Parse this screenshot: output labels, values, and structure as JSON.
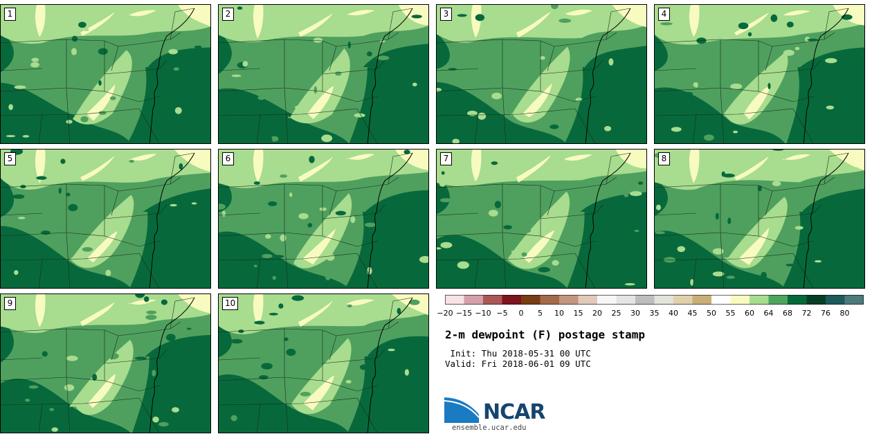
{
  "panels": [
    {
      "label": "1"
    },
    {
      "label": "2"
    },
    {
      "label": "3"
    },
    {
      "label": "4"
    },
    {
      "label": "5"
    },
    {
      "label": "6"
    },
    {
      "label": "7"
    },
    {
      "label": "8"
    },
    {
      "label": "9"
    },
    {
      "label": "10"
    }
  ],
  "colorbar": {
    "tick_labels": [
      "−20",
      "−15",
      "−10",
      "−5",
      "0",
      "5",
      "10",
      "15",
      "20",
      "25",
      "30",
      "35",
      "40",
      "45",
      "50",
      "55",
      "60",
      "64",
      "68",
      "72",
      "76",
      "80"
    ],
    "colors": [
      "#f7e2e4",
      "#d4a0aa",
      "#a95757",
      "#7d1420",
      "#7b3b14",
      "#a46a4a",
      "#c39680",
      "#e1c9bb",
      "#f6f6f6",
      "#e4e4e4",
      "#bdbdbd",
      "#e3e3dc",
      "#e0d1ad",
      "#c9af77",
      "#ffffff",
      "#f8fbbf",
      "#a8dc8f",
      "#4fa55f",
      "#07693b",
      "#073e27",
      "#1d5a5b",
      "#4d7a7d"
    ]
  },
  "map_colors": {
    "lt_yellow": "#f8fbbf",
    "lt_green": "#a8dc8f",
    "mid_green": "#4fa05e",
    "dk_green": "#07693b",
    "water_lake": "#f8fbbf"
  },
  "title": "2-m dewpoint (F) postage stamp",
  "init_line": " Init: Thu 2018-05-31 00 UTC",
  "valid_line": "Valid: Fri 2018-06-01 09 UTC",
  "logo": {
    "text": "NCAR",
    "url": "ensemble.ucar.edu"
  }
}
